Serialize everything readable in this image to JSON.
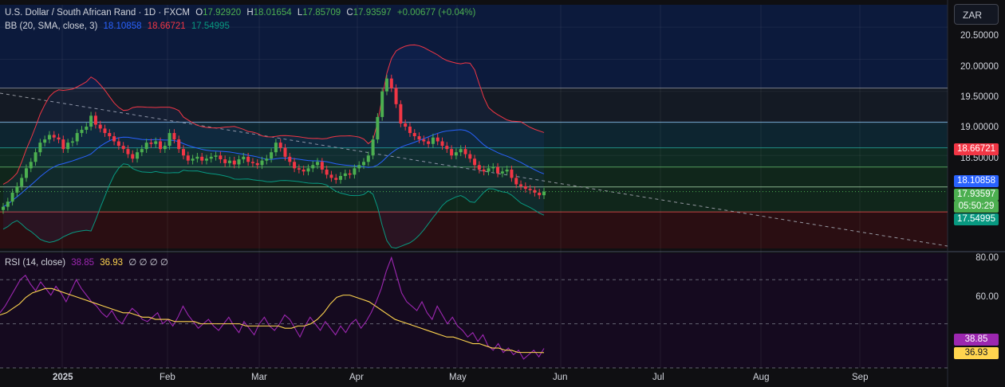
{
  "currency_button": "ZAR",
  "header": {
    "symbol": "U.S. Dollar / South African Rand · 1D · FXCM",
    "o_label": "O",
    "o_value": "17.92920",
    "h_label": "H",
    "h_value": "18.01654",
    "l_label": "L",
    "l_value": "17.85709",
    "c_label": "C",
    "c_value": "17.93597",
    "change": "+0.00677 (+0.04%)"
  },
  "bb_legend": {
    "label": "BB (20, SMA, close, 3)",
    "basis": "18.10858",
    "upper": "18.66721",
    "lower": "17.54995"
  },
  "rsi_legend": {
    "label": "RSI (14, close)",
    "rsi": "38.85",
    "ma": "36.93",
    "extras": "∅ ∅ ∅ ∅"
  },
  "price_axis": [
    "20.50000",
    "20.00000",
    "19.50000",
    "19.00000",
    "18.50000"
  ],
  "price_tags": {
    "upper": "18.66721",
    "basis": "18.10858",
    "last": "17.93597",
    "countdown": "05:50:29",
    "lower": "17.54995"
  },
  "rsi_axis": [
    "80.00",
    "60.00"
  ],
  "rsi_tags": {
    "rsi": "38.85",
    "ma": "36.93"
  },
  "time_axis": [
    "2025",
    "Feb",
    "Mar",
    "Apr",
    "May",
    "Jun",
    "Jul",
    "Aug",
    "Sep"
  ],
  "colors": {
    "up": "#4caf50",
    "down": "#f23645",
    "basis": "#2962ff",
    "upper": "#f23645",
    "lower": "#089981",
    "rsi": "#9c27b0",
    "rsi_ma": "#ffd54f"
  },
  "chart_data": {
    "type": "candlestick",
    "price_range": [
      17.05,
      20.85
    ],
    "rsi_range": [
      30,
      82
    ],
    "closes": [
      17.7,
      17.78,
      17.92,
      18.02,
      18.15,
      18.3,
      18.4,
      18.55,
      18.7,
      18.75,
      18.82,
      18.78,
      18.75,
      18.6,
      18.7,
      18.72,
      18.85,
      18.9,
      18.95,
      19.12,
      18.98,
      18.92,
      18.85,
      18.8,
      18.72,
      18.65,
      18.6,
      18.52,
      18.45,
      18.55,
      18.6,
      18.7,
      18.68,
      18.72,
      18.6,
      18.65,
      18.85,
      18.75,
      18.6,
      18.5,
      18.42,
      18.45,
      18.48,
      18.42,
      18.45,
      18.48,
      18.5,
      18.44,
      18.38,
      18.42,
      18.36,
      18.44,
      18.48,
      18.4,
      18.38,
      18.35,
      18.42,
      18.45,
      18.55,
      18.7,
      18.62,
      18.48,
      18.4,
      18.3,
      18.28,
      18.25,
      18.3,
      18.35,
      18.4,
      18.28,
      18.2,
      18.15,
      18.12,
      18.18,
      18.22,
      18.2,
      18.3,
      18.35,
      18.4,
      18.5,
      18.75,
      19.1,
      19.5,
      19.7,
      19.55,
      19.3,
      19.0,
      18.95,
      18.85,
      18.8,
      18.75,
      18.72,
      18.68,
      18.78,
      18.72,
      18.65,
      18.6,
      18.5,
      18.55,
      18.6,
      18.52,
      18.45,
      18.35,
      18.28,
      18.25,
      18.3,
      18.32,
      18.22,
      18.25,
      18.28,
      18.15,
      18.05,
      18.02,
      17.98,
      17.96,
      17.92,
      17.88,
      17.93597
    ],
    "rsi_values": [
      55,
      58,
      62,
      66,
      70,
      72,
      68,
      65,
      69,
      66,
      63,
      67,
      64,
      60,
      65,
      70,
      66,
      63,
      60,
      58,
      55,
      53,
      56,
      52,
      50,
      54,
      57,
      55,
      52,
      51,
      53,
      55,
      50,
      52,
      49,
      53,
      58,
      54,
      51,
      48,
      50,
      52,
      49,
      47,
      50,
      53,
      49,
      46,
      51,
      48,
      45,
      50,
      53,
      49,
      47,
      50,
      54,
      52,
      48,
      44,
      49,
      53,
      50,
      47,
      51,
      48,
      45,
      49,
      46,
      50,
      52,
      48,
      51,
      55,
      60,
      66,
      74,
      80,
      72,
      64,
      60,
      58,
      56,
      60,
      55,
      52,
      58,
      54,
      50,
      53,
      49,
      47,
      44,
      46,
      42,
      45,
      40,
      38,
      41,
      37,
      39,
      36,
      38,
      34,
      36,
      38,
      35,
      38.85
    ],
    "rsi_ma_values": [
      54,
      55,
      57,
      59,
      62,
      64,
      65,
      66,
      66,
      65,
      64,
      63,
      62,
      61,
      60,
      59,
      58,
      57,
      56,
      55,
      55,
      54,
      53,
      53,
      52,
      52,
      52,
      51,
      51,
      51,
      51,
      50,
      50,
      50,
      50,
      50,
      50,
      50,
      49,
      49,
      49,
      49,
      49,
      49,
      48,
      48,
      49,
      49,
      50,
      52,
      55,
      59,
      62,
      63,
      63,
      62,
      61,
      60,
      58,
      56,
      54,
      52,
      51,
      50,
      49,
      48,
      47,
      46,
      45,
      44,
      44,
      43,
      42,
      41,
      41,
      40,
      39,
      39,
      38,
      38,
      37,
      37,
      37,
      37,
      36.93
    ],
    "horizontal_levels": [
      19.55,
      19.02,
      18.62,
      18.32,
      18.01,
      17.62
    ]
  }
}
